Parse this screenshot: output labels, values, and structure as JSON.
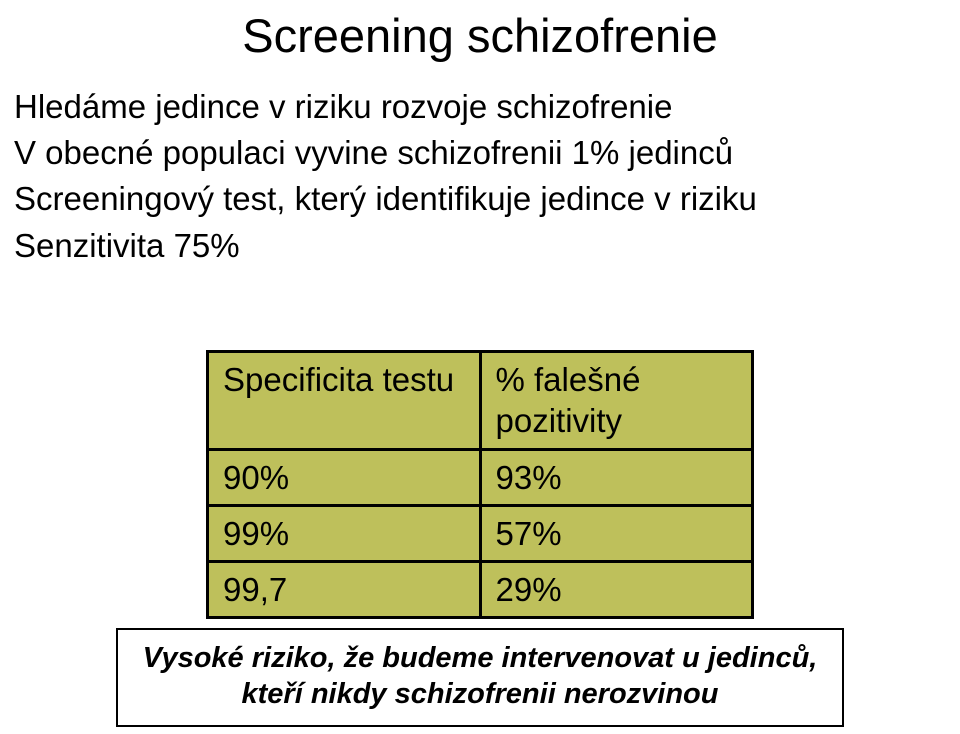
{
  "title": "Screening schizofrenie",
  "body": {
    "line1": "Hledáme jedince v riziku rozvoje schizofrenie",
    "line2": "V obecné populaci vyvine schizofrenii 1% jedinců",
    "line3": "Screeningový test, který identifikuje jedince v riziku",
    "line4": "Senzitivita 75%"
  },
  "table": {
    "bg_color": "#bec05b",
    "header_left": "Specificita testu",
    "header_right": "% falešné pozitivity",
    "rows": [
      {
        "left": "90%",
        "right": "93%"
      },
      {
        "left": "99%",
        "right": "57%"
      },
      {
        "left": "99,7",
        "right": "29%"
      }
    ]
  },
  "callout": {
    "line1": "Vysoké riziko, že budeme intervenovat u jedinců,",
    "line2": "kteří nikdy schizofrenii nerozvinou"
  }
}
